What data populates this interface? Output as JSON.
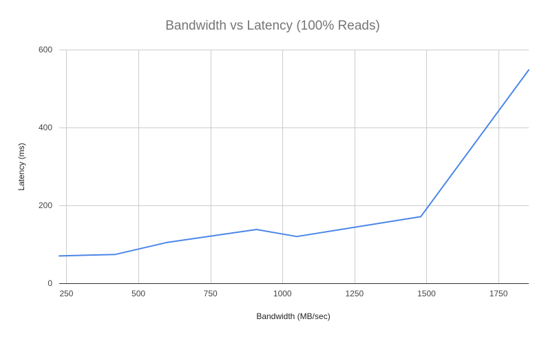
{
  "chart_data": {
    "type": "line",
    "title": "Bandwidth vs Latency (100% Reads)",
    "xlabel": "Bandwidth (MB/sec)",
    "ylabel": "Latency (ms)",
    "xlim": [
      225,
      1855
    ],
    "ylim": [
      0,
      600
    ],
    "x_ticks": [
      250,
      500,
      750,
      1000,
      1250,
      1500,
      1750
    ],
    "y_ticks": [
      0,
      200,
      400,
      600
    ],
    "grid": true,
    "legend": "none",
    "series": [
      {
        "color": "#4a86e8",
        "points": [
          {
            "x": 225,
            "y": 70
          },
          {
            "x": 420,
            "y": 74
          },
          {
            "x": 600,
            "y": 105
          },
          {
            "x": 910,
            "y": 138
          },
          {
            "x": 1050,
            "y": 120
          },
          {
            "x": 1480,
            "y": 171
          },
          {
            "x": 1855,
            "y": 548
          }
        ]
      }
    ]
  }
}
